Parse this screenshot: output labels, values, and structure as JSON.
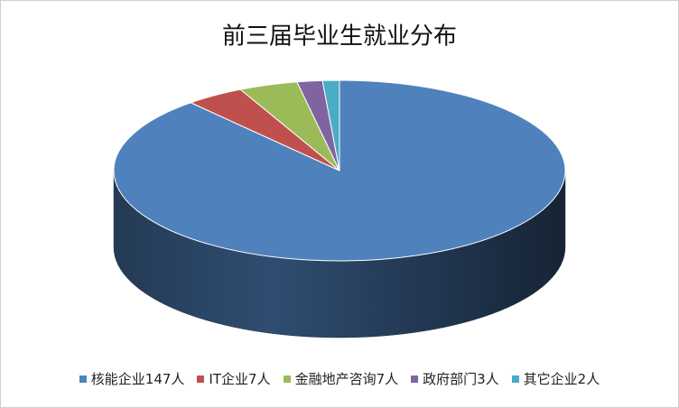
{
  "chart_data": {
    "type": "pie3d",
    "title": "前三届毕业生就业分布",
    "categories": [
      "核能企业147人",
      "IT企业7人",
      "金融地产咨询7人",
      "政府部门3人",
      "其它企业2人"
    ],
    "values": [
      147,
      7,
      7,
      3,
      2
    ],
    "colors": [
      "#4f81bd",
      "#c0504d",
      "#9bbb59",
      "#8064a2",
      "#4bacc6"
    ],
    "legend": "bottom"
  }
}
